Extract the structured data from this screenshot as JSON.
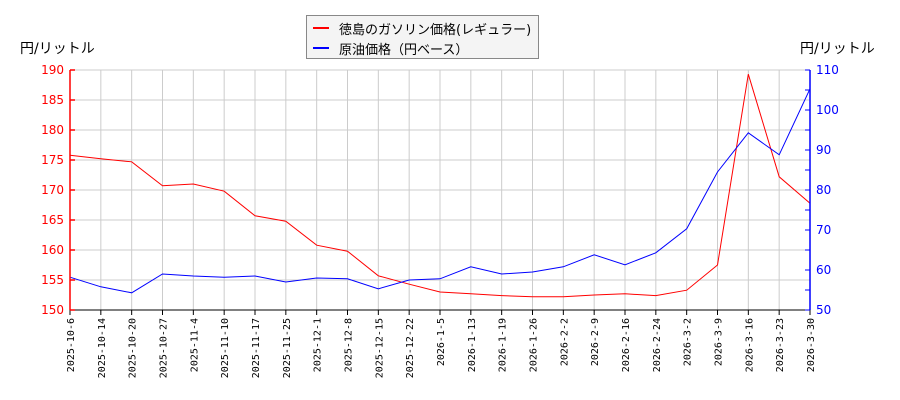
{
  "chart_data": {
    "type": "line",
    "title": "",
    "xlabel": "",
    "ylabel_left": "円/リットル",
    "ylabel_right": "円/リットル",
    "ylim_left": [
      150,
      190
    ],
    "ylim_right": [
      50,
      110
    ],
    "yticks_left": [
      150,
      155,
      160,
      165,
      170,
      175,
      180,
      185,
      190
    ],
    "yticks_right": [
      50,
      60,
      70,
      80,
      90,
      100,
      110
    ],
    "grid": true,
    "legend_position": "top-center",
    "categories": [
      "2025-10-6",
      "2025-10-14",
      "2025-10-20",
      "2025-10-27",
      "2025-11-4",
      "2025-11-10",
      "2025-11-17",
      "2025-11-25",
      "2025-12-1",
      "2025-12-8",
      "2025-12-15",
      "2025-12-22",
      "2026-1-5",
      "2026-1-13",
      "2026-1-19",
      "2026-1-26",
      "2026-2-2",
      "2026-2-9",
      "2026-2-16",
      "2026-2-24",
      "2026-3-2",
      "2026-3-9",
      "2026-3-16",
      "2026-3-23",
      "2026-3-30"
    ],
    "series": [
      {
        "name": "徳島のガソリン価格(レギュラー)",
        "axis": "left",
        "color": "#ff0000",
        "values": [
          175.8,
          175.2,
          174.7,
          170.7,
          171.0,
          169.8,
          165.7,
          164.8,
          160.8,
          159.8,
          155.7,
          154.3,
          153.0,
          152.7,
          152.4,
          152.2,
          152.2,
          152.5,
          152.7,
          152.4,
          153.3,
          157.5,
          189.3,
          172.2,
          167.8
        ]
      },
      {
        "name": "原油価格（円ベース）",
        "axis": "right",
        "color": "#0000ff",
        "values": [
          58.2,
          55.8,
          54.3,
          59.0,
          58.5,
          58.2,
          58.5,
          57.0,
          58.0,
          57.8,
          55.3,
          57.5,
          57.8,
          60.8,
          59.0,
          59.5,
          60.8,
          63.8,
          61.3,
          64.3,
          70.3,
          84.5,
          94.3,
          88.8,
          105.3
        ]
      }
    ]
  },
  "colors": {
    "left_axis": "#ff0000",
    "right_axis": "#0000ff",
    "grid": "#cccccc"
  }
}
